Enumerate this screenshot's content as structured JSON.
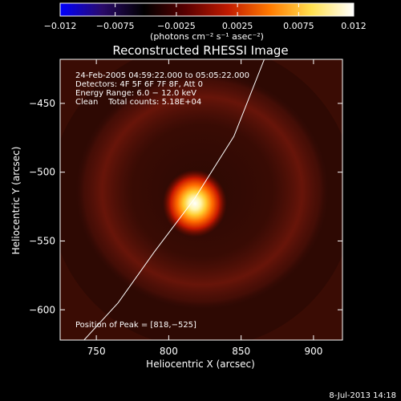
{
  "chart_data": {
    "type": "heatmap",
    "title": "Reconstructed RHESSI Image",
    "xlabel": "Heliocentric X (arcsec)",
    "ylabel": "Heliocentric Y (arcsec)",
    "xlim": [
      725,
      920
    ],
    "ylim": [
      -622,
      -418
    ],
    "x_ticks": [
      750,
      800,
      850,
      900
    ],
    "y_ticks": [
      -450,
      -500,
      -550,
      -600
    ],
    "x_tick_labels": [
      "750",
      "800",
      "850",
      "900"
    ],
    "y_tick_labels": [
      "−450",
      "−500",
      "−550",
      "−600"
    ],
    "colorbar": {
      "range": [
        -0.012,
        0.012
      ],
      "ticks": [
        -0.012,
        -0.0075,
        -0.0025,
        0.0025,
        0.0075,
        0.012
      ],
      "tick_labels": [
        "−0.012",
        "−0.0075",
        "−0.0025",
        "0.0025",
        "0.0075",
        "0.012"
      ],
      "unit_label": "(photons cm⁻² s⁻¹ asec⁻²)",
      "colors": [
        "#0000ff",
        "#2a0a6a",
        "#000000",
        "#5a0000",
        "#c01a00",
        "#ff7a00",
        "#ffe050",
        "#ffffff"
      ]
    },
    "annotations": [
      "24-Feb-2005 04:59:22.000 to 05:05:22.000",
      "Detectors: 4F 5F 6F 7F 8F, Att 0",
      "Energy Range: 6.0 − 12.0 keV",
      "Clean    Total counts: 5.18E+04"
    ],
    "peak": {
      "label": "Position of Peak = [818,−525]",
      "x": 818,
      "y": -525
    },
    "limb_curve": [
      [
        738,
        -626
      ],
      [
        765,
        -595
      ],
      [
        790,
        -558
      ],
      [
        818,
        -519
      ],
      [
        845,
        -474
      ],
      [
        866,
        -418
      ]
    ],
    "background_color": "#3a0c04"
  },
  "footer": {
    "timestamp": "8-Jul-2013 14:18"
  }
}
